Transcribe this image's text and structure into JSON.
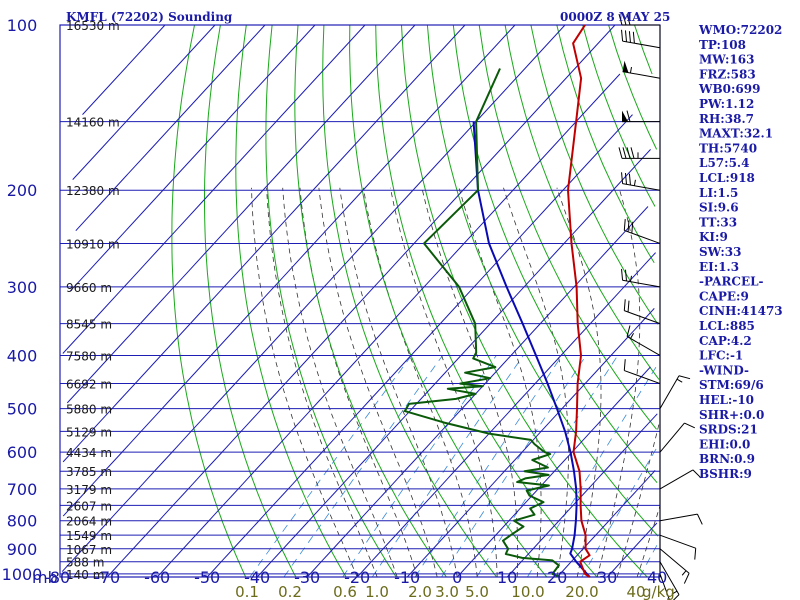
{
  "header": {
    "title": "KMFL (72202) Sounding",
    "time": "0000Z  8 MAY 25"
  },
  "indices": [
    "WMO:72202",
    "TP:108",
    "MW:163",
    "FRZ:583",
    "WB0:699",
    "PW:1.12",
    "RH:38.7",
    "MAXT:32.1",
    "TH:5740",
    "L57:5.4",
    "LCL:918",
    "LI:1.5",
    "SI:9.6",
    "TT:33",
    "KI:9",
    "SW:33",
    "EI:1.3",
    "-PARCEL-",
    "CAPE:9",
    "CINH:41473",
    "LCL:885",
    "CAP:4.2",
    "LFC:-1",
    "-WIND-",
    "STM:69/6",
    "HEL:-10",
    "SHR+:0.0",
    "SRDS:21",
    "EHI:0.0",
    "BRN:0.9",
    "BSHR:9"
  ],
  "colors": {
    "isobar": "#1e1eb4",
    "isotherm": "#1e1eb4",
    "dry_adiabat": "#1aa81a",
    "moist_adiabat": "#333333",
    "mixing_ratio": "#3a8ad8",
    "temperature": "#c00000",
    "dewpoint": "#0a5a0a",
    "parcel": "#0a0ab4",
    "wind": "#000000"
  },
  "chart_data": {
    "type": "line",
    "chart_kind": "skew-T log-P sounding",
    "pressure_unit": "mb",
    "pressure_levels": [
      1000,
      900,
      800,
      700,
      600,
      500,
      400,
      300,
      200,
      100
    ],
    "pressure_labels": [
      "1000",
      "900",
      "800",
      "700",
      "600",
      "500",
      "400",
      "300",
      "200",
      "100"
    ],
    "x_tick_values": [
      -80,
      -70,
      -60,
      -50,
      -40,
      -30,
      -20,
      -10,
      0,
      10,
      20,
      30,
      40
    ],
    "x_tick_labels": [
      "-80",
      "-70",
      "-60",
      "-50",
      "-40",
      "-30",
      "-20",
      "-10",
      "0",
      "10",
      "20",
      "30",
      "40"
    ],
    "corner_label": "mb",
    "mixing_ratio_label": "g/kg",
    "mixing_ratio_ticks": [
      {
        "w": 0.1,
        "label": "0.1"
      },
      {
        "w": 0.2,
        "label": "0.2"
      },
      {
        "w": 0.6,
        "label": "0.6"
      },
      {
        "w": 1.0,
        "label": "1.0"
      },
      {
        "w": 2.0,
        "label": "2.0"
      },
      {
        "w": 3.0,
        "label": "3.0"
      },
      {
        "w": 5.0,
        "label": "5.0"
      },
      {
        "w": 10.0,
        "label": "10.0"
      },
      {
        "w": 20.0,
        "label": "20.0"
      },
      {
        "w": 40.0,
        "label": "40"
      }
    ],
    "heights": [
      {
        "p": 1000,
        "label": "140 m"
      },
      {
        "p": 950,
        "label": "588 m"
      },
      {
        "p": 900,
        "label": "1067 m"
      },
      {
        "p": 850,
        "label": "1549 m"
      },
      {
        "p": 800,
        "label": "2064 m"
      },
      {
        "p": 750,
        "label": "2607 m"
      },
      {
        "p": 700,
        "label": "3179 m"
      },
      {
        "p": 650,
        "label": "3785 m"
      },
      {
        "p": 600,
        "label": "4434 m"
      },
      {
        "p": 550,
        "label": "5129 m"
      },
      {
        "p": 500,
        "label": "5880 m"
      },
      {
        "p": 450,
        "label": "6692 m"
      },
      {
        "p": 400,
        "label": "7580 m"
      },
      {
        "p": 350,
        "label": "8545 m"
      },
      {
        "p": 300,
        "label": "9660 m"
      },
      {
        "p": 250,
        "label": "10910 m"
      },
      {
        "p": 200,
        "label": "12380 m"
      },
      {
        "p": 150,
        "label": "14160 m"
      },
      {
        "p": 100,
        "label": "16530 m"
      }
    ],
    "series": [
      {
        "key": "temperature",
        "points": [
          [
            1013,
            26.5
          ],
          [
            1000,
            25.0
          ],
          [
            950,
            21.8
          ],
          [
            925,
            22.5
          ],
          [
            900,
            20.5
          ],
          [
            850,
            18.0
          ],
          [
            800,
            14.5
          ],
          [
            750,
            11.5
          ],
          [
            700,
            8.5
          ],
          [
            650,
            5.0
          ],
          [
            600,
            0.3
          ],
          [
            550,
            -3.0
          ],
          [
            500,
            -7.0
          ],
          [
            450,
            -11.5
          ],
          [
            400,
            -16.0
          ],
          [
            350,
            -22.5
          ],
          [
            300,
            -29.5
          ],
          [
            250,
            -38.5
          ],
          [
            200,
            -49.0
          ],
          [
            150,
            -60.0
          ],
          [
            125,
            -67.0
          ],
          [
            108,
            -75.0
          ],
          [
            100,
            -76.0
          ]
        ]
      },
      {
        "key": "dewpoint",
        "points": [
          [
            1013,
            20.5
          ],
          [
            1000,
            18.5
          ],
          [
            965,
            18.2
          ],
          [
            945,
            16.0
          ],
          [
            935,
            9.5
          ],
          [
            920,
            5.5
          ],
          [
            900,
            5.0
          ],
          [
            870,
            2.5
          ],
          [
            850,
            3.0
          ],
          [
            820,
            4.0
          ],
          [
            800,
            1.0
          ],
          [
            780,
            4.0
          ],
          [
            760,
            2.0
          ],
          [
            740,
            3.5
          ],
          [
            720,
            -0.5
          ],
          [
            705,
            -2.0
          ],
          [
            690,
            1.5
          ],
          [
            680,
            -5.5
          ],
          [
            670,
            -4.5
          ],
          [
            660,
            -0.5
          ],
          [
            650,
            -6.0
          ],
          [
            640,
            -2.0
          ],
          [
            620,
            -6.5
          ],
          [
            605,
            -4.0
          ],
          [
            600,
            -5.5
          ],
          [
            580,
            -9.0
          ],
          [
            570,
            -10.5
          ],
          [
            555,
            -20.0
          ],
          [
            530,
            -31.0
          ],
          [
            505,
            -41.0
          ],
          [
            490,
            -41.5
          ],
          [
            480,
            -33.0
          ],
          [
            470,
            -30.0
          ],
          [
            460,
            -36.5
          ],
          [
            455,
            -30.0
          ],
          [
            450,
            -35.0
          ],
          [
            440,
            -30.0
          ],
          [
            430,
            -36.0
          ],
          [
            420,
            -31.0
          ],
          [
            405,
            -37.0
          ],
          [
            395,
            -37.5
          ],
          [
            350,
            -43.0
          ],
          [
            300,
            -53.0
          ],
          [
            250,
            -68.0
          ],
          [
            200,
            -67.0
          ],
          [
            150,
            -80.0
          ],
          [
            120,
            -85.0
          ]
        ]
      },
      {
        "key": "parcel",
        "points": [
          [
            1013,
            26.5
          ],
          [
            950,
            21.0
          ],
          [
            918,
            18.3
          ],
          [
            900,
            17.8
          ],
          [
            850,
            15.8
          ],
          [
            800,
            13.4
          ],
          [
            750,
            10.7
          ],
          [
            700,
            7.6
          ],
          [
            650,
            3.9
          ],
          [
            600,
            -0.3
          ],
          [
            550,
            -5.2
          ],
          [
            500,
            -11.0
          ],
          [
            450,
            -17.5
          ],
          [
            400,
            -25.0
          ],
          [
            350,
            -33.5
          ],
          [
            300,
            -43.5
          ],
          [
            250,
            -55.0
          ],
          [
            200,
            -67.0
          ],
          [
            150,
            -80.5
          ]
        ]
      }
    ],
    "wind_barbs": [
      {
        "p": 1000,
        "dir": 160,
        "spd": 10
      },
      {
        "p": 950,
        "dir": 150,
        "spd": 15
      },
      {
        "p": 900,
        "dir": 130,
        "spd": 15
      },
      {
        "p": 850,
        "dir": 110,
        "spd": 10
      },
      {
        "p": 800,
        "dir": 80,
        "spd": 10
      },
      {
        "p": 700,
        "dir": 60,
        "spd": 10
      },
      {
        "p": 600,
        "dir": 40,
        "spd": 10
      },
      {
        "p": 500,
        "dir": 30,
        "spd": 15
      },
      {
        "p": 450,
        "dir": 290,
        "spd": 10
      },
      {
        "p": 400,
        "dir": 300,
        "spd": 15
      },
      {
        "p": 350,
        "dir": 290,
        "spd": 20
      },
      {
        "p": 300,
        "dir": 280,
        "spd": 25
      },
      {
        "p": 250,
        "dir": 290,
        "spd": 30
      },
      {
        "p": 200,
        "dir": 280,
        "spd": 35
      },
      {
        "p": 175,
        "dir": 270,
        "spd": 45
      },
      {
        "p": 150,
        "dir": 270,
        "spd": 60
      },
      {
        "p": 125,
        "dir": 280,
        "spd": 55
      },
      {
        "p": 110,
        "dir": 280,
        "spd": 40
      },
      {
        "p": 100,
        "dir": 270,
        "spd": 30
      }
    ]
  }
}
